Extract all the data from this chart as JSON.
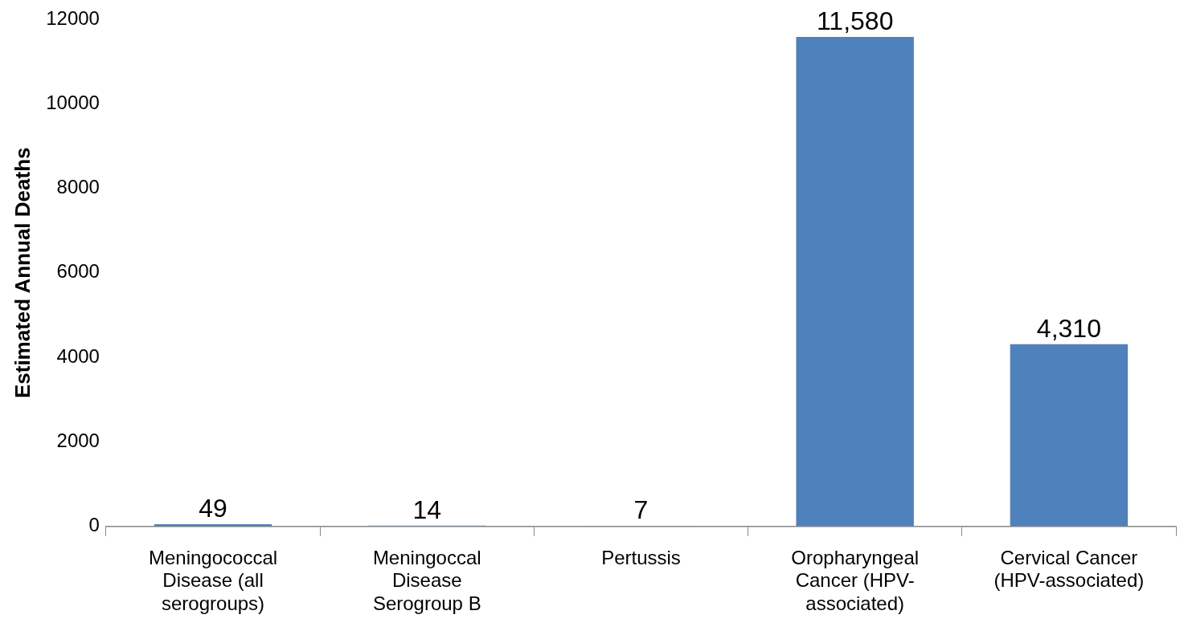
{
  "chart_data": {
    "type": "bar",
    "ylabel": "Estimated Annual Deaths",
    "categories": [
      "Meningococcal Disease (all serogroups)",
      "Meningoccal Disease Serogroup B",
      "Pertussis",
      "Oropharyngeal Cancer (HPV-associated)",
      "Cervical Cancer (HPV-associated)"
    ],
    "values": [
      49,
      14,
      7,
      11580,
      4310
    ],
    "value_labels": [
      "49",
      "14",
      "7",
      "11,580",
      "4,310"
    ],
    "color": "#4f81bd",
    "ylim": [
      0,
      12000
    ],
    "yticks": [
      0,
      2000,
      4000,
      6000,
      8000,
      10000,
      12000
    ],
    "grid": false,
    "legend": false
  }
}
